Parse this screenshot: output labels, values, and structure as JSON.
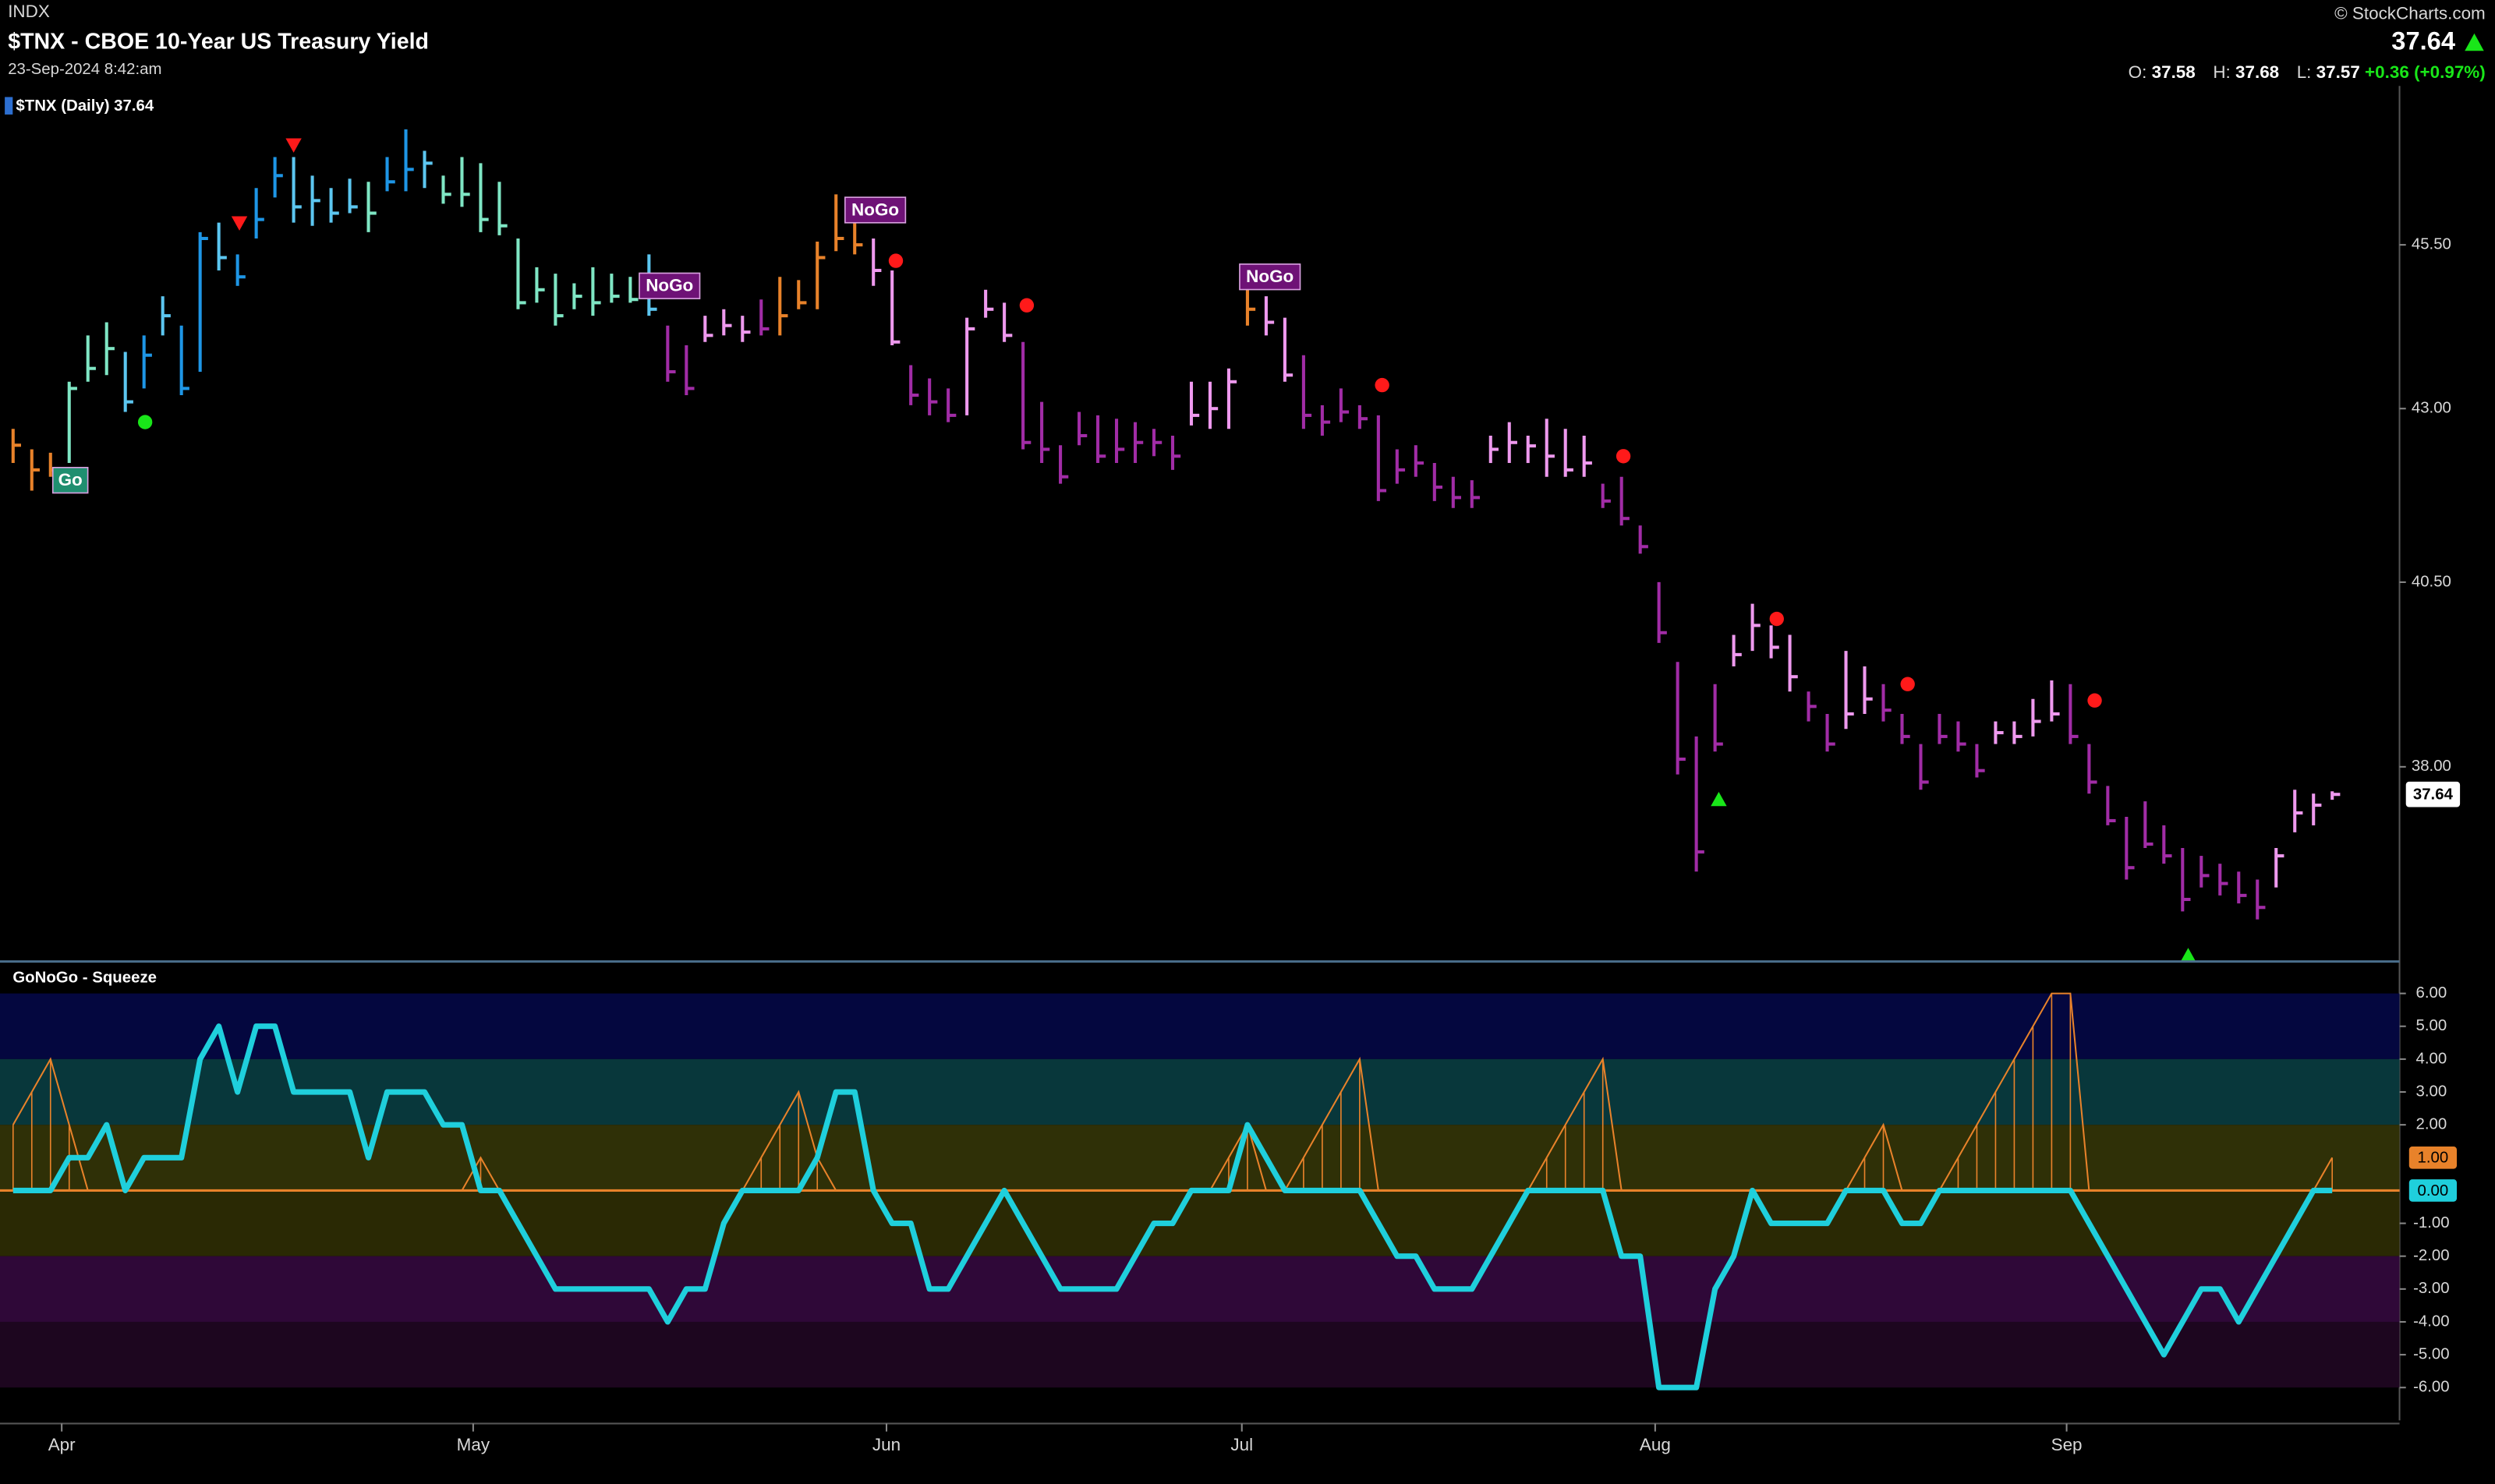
{
  "header": {
    "exchange": "INDX",
    "title": "$TNX - CBOE 10-Year US Treasury Yield",
    "timestamp": "23-Sep-2024 8:42:am",
    "copyright": "© StockCharts.com",
    "last": 37.64,
    "open_label": "O:",
    "open": 37.58,
    "high_label": "H:",
    "high": 37.68,
    "low_label": "L:",
    "low": 37.57,
    "change": {
      "value": 0.36,
      "label": "+0.36"
    },
    "change_pct": {
      "value": 0.97,
      "label": "(+0.97%)"
    }
  },
  "chart_data": [
    {
      "type": "ohlc",
      "legend": "$TNX (Daily) 37.64",
      "log_scale": true,
      "ylim": [
        35.56,
        47.96
      ],
      "yticks": [
        {
          "value": 45.5,
          "label": "45.50"
        },
        {
          "value": 43,
          "label": "43.00"
        },
        {
          "value": 40.5,
          "label": "40.50"
        },
        {
          "value": 38,
          "label": "38.00"
        }
      ],
      "xlim": [
        -0.7,
        127.6
      ],
      "xticks": [
        {
          "value": 2.6,
          "label": "Apr"
        },
        {
          "value": 24.6,
          "label": "May"
        },
        {
          "value": 46.7,
          "label": "Jun"
        },
        {
          "value": 65.7,
          "label": "Jul"
        },
        {
          "value": 87.8,
          "label": "Aug"
        },
        {
          "value": 109.8,
          "label": "Sep"
        }
      ],
      "high": [
        42.7,
        42.4,
        42.35,
        43.4,
        44.1,
        44.3,
        43.85,
        44.1,
        44.7,
        44.25,
        45.7,
        45.85,
        45.35,
        46.4,
        46.9,
        46.9,
        46.6,
        46.4,
        46.55,
        46.5,
        46.9,
        47.35,
        47.0,
        46.6,
        46.9,
        46.8,
        46.5,
        45.6,
        45.15,
        45.05,
        44.9,
        45.15,
        45.05,
        45.0,
        45.35,
        44.25,
        43.95,
        44.4,
        44.5,
        44.4,
        44.65,
        45.0,
        44.95,
        45.55,
        46.3,
        45.9,
        45.6,
        45.1,
        43.65,
        43.45,
        43.3,
        44.37,
        44.8,
        44.6,
        44.0,
        43.1,
        42.46,
        42.95,
        42.9,
        42.85,
        42.8,
        42.7,
        42.6,
        43.4,
        43.4,
        43.6,
        44.86,
        44.7,
        44.37,
        43.8,
        43.05,
        43.3,
        43.05,
        42.9,
        42.4,
        42.46,
        42.2,
        42.0,
        41.95,
        42.6,
        42.8,
        42.6,
        42.85,
        42.7,
        42.6,
        41.9,
        42.0,
        41.3,
        40.5,
        39.4,
        38.4,
        39.1,
        39.77,
        40.2,
        39.9,
        39.77,
        39.0,
        38.7,
        39.55,
        39.34,
        39.1,
        38.7,
        38.3,
        38.7,
        38.6,
        38.3,
        38.6,
        38.6,
        38.9,
        39.15,
        39.1,
        38.3,
        37.75,
        37.35,
        37.55,
        37.24,
        36.95,
        36.85,
        36.75,
        36.65,
        36.55,
        36.95,
        37.7,
        37.65,
        37.68
      ],
      "low": [
        42.2,
        41.8,
        42.0,
        42.2,
        43.4,
        43.5,
        42.95,
        43.3,
        44.1,
        43.2,
        43.55,
        45.1,
        44.86,
        45.6,
        46.25,
        45.85,
        45.8,
        45.85,
        46.0,
        45.7,
        46.35,
        46.35,
        46.4,
        46.15,
        46.1,
        45.7,
        45.65,
        44.5,
        44.6,
        44.25,
        44.5,
        44.4,
        44.6,
        44.6,
        44.4,
        43.4,
        43.2,
        44.0,
        44.1,
        44.0,
        44.1,
        44.1,
        44.5,
        44.5,
        45.4,
        45.35,
        44.86,
        43.95,
        43.05,
        42.9,
        42.8,
        42.9,
        44.37,
        44.0,
        42.4,
        42.2,
        41.9,
        42.46,
        42.2,
        42.2,
        42.2,
        42.3,
        42.1,
        42.75,
        42.7,
        42.7,
        44.25,
        44.1,
        43.4,
        42.7,
        42.6,
        42.8,
        42.7,
        41.65,
        41.9,
        42.0,
        41.65,
        41.55,
        41.55,
        42.2,
        42.2,
        42.2,
        42.0,
        42.0,
        42.0,
        41.55,
        41.3,
        40.9,
        39.66,
        37.9,
        36.65,
        38.2,
        39.34,
        39.55,
        39.45,
        39.0,
        38.6,
        38.2,
        38.5,
        38.7,
        38.6,
        38.3,
        37.7,
        38.3,
        38.2,
        37.86,
        38.3,
        38.3,
        38.4,
        38.6,
        38.3,
        37.65,
        37.24,
        36.55,
        36.95,
        36.75,
        36.15,
        36.45,
        36.35,
        36.25,
        36.05,
        36.45,
        37.15,
        37.24,
        37.57
      ],
      "close": [
        42.46,
        42.1,
        42.1,
        43.3,
        43.6,
        43.9,
        43.1,
        43.8,
        44.4,
        43.3,
        45.6,
        45.3,
        45.0,
        45.9,
        46.6,
        46.1,
        46.2,
        46.0,
        46.1,
        46.0,
        46.5,
        46.7,
        46.8,
        46.3,
        46.3,
        45.9,
        45.8,
        44.6,
        44.8,
        44.4,
        44.7,
        44.6,
        44.7,
        44.65,
        44.5,
        43.55,
        43.3,
        44.1,
        44.25,
        44.15,
        44.2,
        44.4,
        44.6,
        45.3,
        45.6,
        45.5,
        45.1,
        44.0,
        43.2,
        43.1,
        42.9,
        44.2,
        44.5,
        44.1,
        42.5,
        42.4,
        42.0,
        42.6,
        42.3,
        42.4,
        42.5,
        42.5,
        42.3,
        42.9,
        43.0,
        43.4,
        44.5,
        44.3,
        43.5,
        42.9,
        42.8,
        42.95,
        42.85,
        41.8,
        42.1,
        42.2,
        41.85,
        41.7,
        41.7,
        42.4,
        42.5,
        42.45,
        42.3,
        42.1,
        42.2,
        41.65,
        41.4,
        41.0,
        39.8,
        38.1,
        36.9,
        38.3,
        39.5,
        39.9,
        39.6,
        39.2,
        38.8,
        38.3,
        38.7,
        38.9,
        38.75,
        38.4,
        37.8,
        38.4,
        38.3,
        37.95,
        38.45,
        38.4,
        38.6,
        38.7,
        38.4,
        37.8,
        37.3,
        36.7,
        37.0,
        36.85,
        36.3,
        36.6,
        36.5,
        36.35,
        36.2,
        36.85,
        37.4,
        37.5,
        37.64
      ],
      "colors": [
        "#e8822a",
        "#e8822a",
        "#e8822a",
        "#7fe6c4",
        "#7fe6c4",
        "#7fe6c4",
        "#5cc6f0",
        "#1e96e6",
        "#5cc6f0",
        "#1e96e6",
        "#1e96e6",
        "#5cc6f0",
        "#1e96e6",
        "#1e96e6",
        "#1e96e6",
        "#5cc6f0",
        "#5cc6f0",
        "#5cc6f0",
        "#5cc6f0",
        "#7fe6c4",
        "#1e96e6",
        "#1e96e6",
        "#5cc6f0",
        "#7fe6c4",
        "#7fe6c4",
        "#7fe6c4",
        "#7fe6c4",
        "#7fe6c4",
        "#7fe6c4",
        "#7fe6c4",
        "#7fe6c4",
        "#7fe6c4",
        "#7fe6c4",
        "#7fe6c4",
        "#5cc6f0",
        "#a12ca6",
        "#a12ca6",
        "#ee99ee",
        "#ee99ee",
        "#ee99ee",
        "#a12ca6",
        "#e8822a",
        "#e8822a",
        "#e8822a",
        "#e8822a",
        "#e8822a",
        "#ee99ee",
        "#ee99ee",
        "#a12ca6",
        "#a12ca6",
        "#a12ca6",
        "#ee99ee",
        "#ee99ee",
        "#ee99ee",
        "#a12ca6",
        "#a12ca6",
        "#a12ca6",
        "#a12ca6",
        "#a12ca6",
        "#a12ca6",
        "#a12ca6",
        "#a12ca6",
        "#a12ca6",
        "#ee99ee",
        "#ee99ee",
        "#ee99ee",
        "#e8822a",
        "#ee99ee",
        "#ee99ee",
        "#a12ca6",
        "#a12ca6",
        "#a12ca6",
        "#a12ca6",
        "#a12ca6",
        "#a12ca6",
        "#a12ca6",
        "#a12ca6",
        "#a12ca6",
        "#a12ca6",
        "#ee99ee",
        "#ee99ee",
        "#ee99ee",
        "#ee99ee",
        "#ee99ee",
        "#ee99ee",
        "#a12ca6",
        "#a12ca6",
        "#a12ca6",
        "#a12ca6",
        "#a12ca6",
        "#a12ca6",
        "#a12ca6",
        "#ee99ee",
        "#ee99ee",
        "#ee99ee",
        "#ee99ee",
        "#a12ca6",
        "#a12ca6",
        "#ee99ee",
        "#ee99ee",
        "#a12ca6",
        "#a12ca6",
        "#a12ca6",
        "#a12ca6",
        "#a12ca6",
        "#a12ca6",
        "#ee99ee",
        "#ee99ee",
        "#ee99ee",
        "#ee99ee",
        "#a12ca6",
        "#a12ca6",
        "#a12ca6",
        "#a12ca6",
        "#a12ca6",
        "#a12ca6",
        "#a12ca6",
        "#a12ca6",
        "#a12ca6",
        "#a12ca6",
        "#a12ca6",
        "#ee99ee",
        "#ee99ee",
        "#ee99ee",
        "#ee99ee"
      ],
      "signals": [
        {
          "x": 12.1,
          "y": 45.85,
          "shape": "triangle-down",
          "color": "#ff1a1a"
        },
        {
          "x": 15.0,
          "y": 47.1,
          "shape": "triangle-down",
          "color": "#ff1a1a"
        },
        {
          "x": 91.2,
          "y": 37.57,
          "shape": "triangle-up",
          "color": "#19e619"
        },
        {
          "x": 116.3,
          "y": 35.6,
          "shape": "triangle-up",
          "color": "#19e619"
        },
        {
          "x": 7.06,
          "y": 42.8,
          "shape": "dot",
          "color": "#19e619"
        },
        {
          "x": 47.2,
          "y": 45.25,
          "shape": "dot",
          "color": "#ff1a1a"
        },
        {
          "x": 54.2,
          "y": 44.56,
          "shape": "dot",
          "color": "#ff1a1a"
        },
        {
          "x": 73.2,
          "y": 43.35,
          "shape": "dot",
          "color": "#ff1a1a"
        },
        {
          "x": 86.1,
          "y": 42.3,
          "shape": "dot",
          "color": "#ff1a1a"
        },
        {
          "x": 94.3,
          "y": 39.99,
          "shape": "dot",
          "color": "#ff1a1a"
        },
        {
          "x": 101.3,
          "y": 39.1,
          "shape": "dot",
          "color": "#ff1a1a"
        },
        {
          "x": 111.3,
          "y": 38.88,
          "shape": "dot",
          "color": "#ff1a1a"
        }
      ],
      "annotations": [
        {
          "text": "Go",
          "x": 3.06,
          "y": 41.95,
          "color": "#1f8f70"
        },
        {
          "text": "NoGo",
          "x": 35.1,
          "y": 44.86,
          "color": "#6e1276"
        },
        {
          "text": "NoGo",
          "x": 46.1,
          "y": 46.05,
          "color": "#6e1276"
        },
        {
          "text": "NoGo",
          "x": 67.2,
          "y": 45.0,
          "color": "#6e1276"
        }
      ]
    },
    {
      "type": "oscillator",
      "title": "GoNoGo - Squeeze",
      "ylim": [
        -7,
        6.9
      ],
      "yticks": [
        {
          "value": 6,
          "label": "6.00"
        },
        {
          "value": 5,
          "label": "5.00"
        },
        {
          "value": 4,
          "label": "4.00"
        },
        {
          "value": 3,
          "label": "3.00"
        },
        {
          "value": 2,
          "label": "2.00"
        },
        {
          "value": -1,
          "label": "-1.00"
        },
        {
          "value": -2,
          "label": "-2.00"
        },
        {
          "value": -3,
          "label": "-3.00"
        },
        {
          "value": -4,
          "label": "-4.00"
        },
        {
          "value": -5,
          "label": "-5.00"
        },
        {
          "value": -6,
          "label": "-6.00"
        }
      ],
      "bands": [
        {
          "from": 4,
          "to": 6,
          "color": "#04073f"
        },
        {
          "from": 2,
          "to": 4,
          "color": "#08373b"
        },
        {
          "from": 0,
          "to": 2,
          "color": "#2f3007"
        },
        {
          "from": -2,
          "to": 0,
          "color": "#2a2904"
        },
        {
          "from": -4,
          "to": -2,
          "color": "#2f0838"
        },
        {
          "from": -6,
          "to": -4,
          "color": "#1d061f"
        }
      ],
      "zero_line_color": "#e8822a",
      "oscillator": {
        "color": "#1fcfdc",
        "last_label": "0.00",
        "values": [
          0,
          0,
          0,
          1,
          1,
          2,
          0,
          1,
          1,
          1,
          4,
          5,
          3,
          5,
          5,
          3,
          3,
          3,
          3,
          1,
          3,
          3,
          3,
          2,
          2,
          0,
          0,
          -1,
          -2,
          -3,
          -3,
          -3,
          -3,
          -3,
          -3,
          -4,
          -3,
          -3,
          -1,
          0,
          0,
          0,
          0,
          1,
          3,
          3,
          0,
          -1,
          -1,
          -3,
          -3,
          -2,
          -1,
          0,
          -1,
          -2,
          -3,
          -3,
          -3,
          -3,
          -2,
          -1,
          -1,
          0,
          0,
          0,
          2,
          1,
          0,
          0,
          0,
          0,
          0,
          -1,
          -2,
          -2,
          -3,
          -3,
          -3,
          -2,
          -1,
          0,
          0,
          0,
          0,
          0,
          -2,
          -2,
          -6,
          -6,
          -6,
          -3,
          -2,
          0,
          -1,
          -1,
          -1,
          -1,
          0,
          0,
          0,
          -1,
          -1,
          0,
          0,
          0,
          0,
          0,
          0,
          0,
          0,
          -1,
          -2,
          -3,
          -4,
          -5,
          -4,
          -3,
          -3,
          -4,
          -3,
          -2,
          -1,
          0,
          0
        ]
      },
      "squeeze": {
        "color": "#e8822a",
        "last_label": "1.00",
        "values": [
          2,
          3,
          4,
          2,
          0,
          0,
          0,
          0,
          0,
          0,
          0,
          0,
          0,
          0,
          0,
          0,
          0,
          0,
          0,
          0,
          0,
          0,
          0,
          0,
          0,
          1,
          0,
          0,
          0,
          0,
          0,
          0,
          0,
          0,
          0,
          0,
          0,
          0,
          0,
          0,
          1,
          2,
          3,
          1,
          0,
          0,
          0,
          0,
          0,
          0,
          0,
          0,
          0,
          0,
          0,
          0,
          0,
          0,
          0,
          0,
          0,
          0,
          0,
          0,
          0,
          1,
          2,
          0,
          0,
          1,
          2,
          3,
          4,
          0,
          0,
          0,
          0,
          0,
          0,
          0,
          0,
          0,
          1,
          2,
          3,
          4,
          0,
          0,
          0,
          0,
          0,
          0,
          0,
          0,
          0,
          0,
          0,
          0,
          0,
          1,
          2,
          0,
          0,
          0,
          1,
          2,
          3,
          4,
          5,
          6,
          6,
          0,
          0,
          0,
          0,
          0,
          0,
          0,
          0,
          0,
          0,
          0,
          0,
          0,
          1
        ]
      }
    }
  ]
}
